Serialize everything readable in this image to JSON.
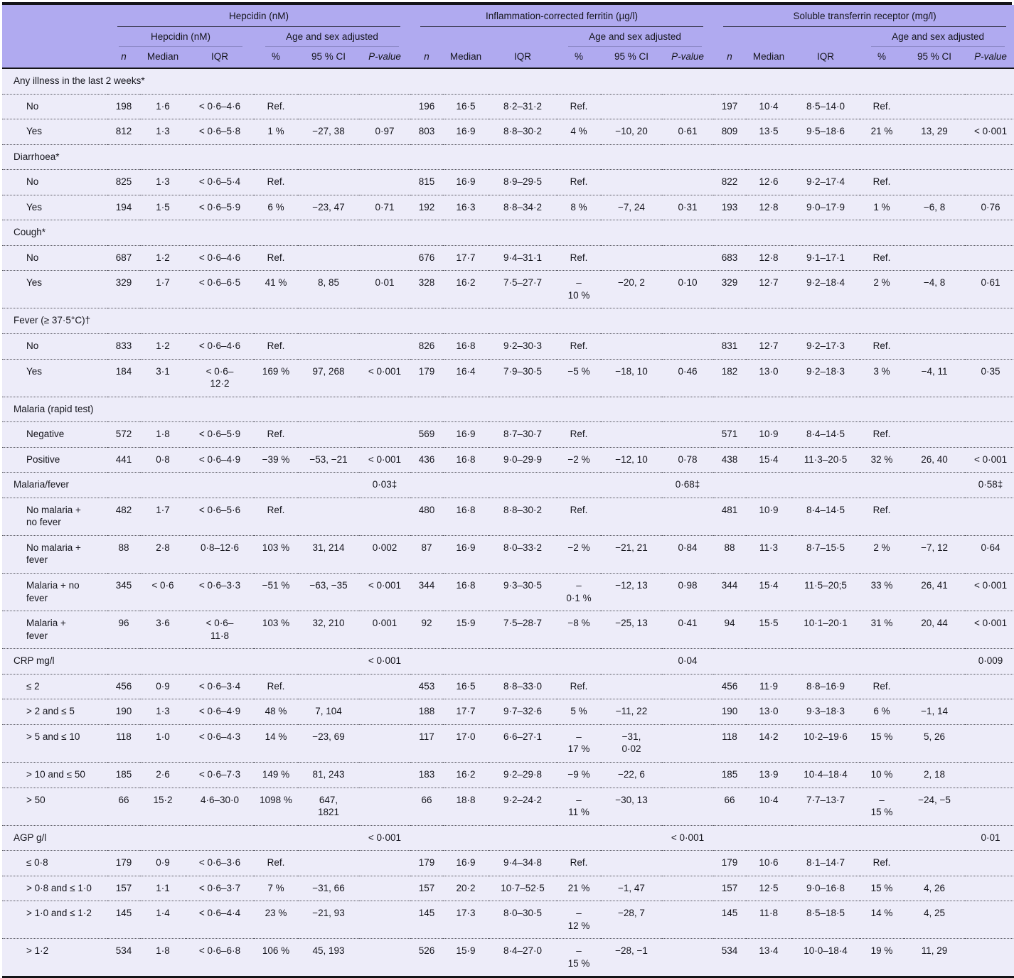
{
  "table": {
    "columns": {
      "groups": [
        {
          "label": "Hepcidin (nM)",
          "sub": "Hepcidin (nM)",
          "adjusted": "Age and sex adjusted"
        },
        {
          "label": "Inflammation-corrected ferritin (µg/l)",
          "sub": "",
          "adjusted": "Age and sex adjusted"
        },
        {
          "label": "Soluble transferrin receptor (mg/l)",
          "sub": "",
          "adjusted": "Age and sex adjusted"
        }
      ],
      "leaf": [
        {
          "label": "n",
          "italic": true
        },
        {
          "label": "Median",
          "italic": false
        },
        {
          "label": "IQR",
          "italic": false
        },
        {
          "label": "%",
          "italic": false
        },
        {
          "label": "95 % CI",
          "italic": false
        },
        {
          "label": "P-value",
          "italic": true
        }
      ]
    },
    "rows": [
      {
        "type": "section",
        "label": "Any illness in the last 2 weeks*",
        "cells": [
          "",
          "",
          "",
          "",
          "",
          "",
          "",
          "",
          "",
          "",
          "",
          "",
          "",
          "",
          "",
          "",
          "",
          ""
        ]
      },
      {
        "type": "data",
        "label": "No",
        "cells": [
          "198",
          "1·6",
          "< 0·6–4·6",
          "Ref.",
          "",
          "",
          "196",
          "16·5",
          "8·2–31·2",
          "Ref.",
          "",
          "",
          "197",
          "10·4",
          "8·5–14·0",
          "Ref.",
          "",
          ""
        ]
      },
      {
        "type": "data",
        "label": "Yes",
        "cells": [
          "812",
          "1·3",
          "< 0·6–5·8",
          "1 %",
          "−27, 38",
          "0·97",
          "803",
          "16·9",
          "8·8–30·2",
          "4 %",
          "−10, 20",
          "0·61",
          "809",
          "13·5",
          "9·5–18·6",
          "21 %",
          "13, 29",
          "< 0·001"
        ]
      },
      {
        "type": "section",
        "label": "Diarrhoea*",
        "cells": [
          "",
          "",
          "",
          "",
          "",
          "",
          "",
          "",
          "",
          "",
          "",
          "",
          "",
          "",
          "",
          "",
          "",
          ""
        ]
      },
      {
        "type": "data",
        "label": "No",
        "cells": [
          "825",
          "1·3",
          "< 0·6–5·4",
          "Ref.",
          "",
          "",
          "815",
          "16·9",
          "8·9–29·5",
          "Ref.",
          "",
          "",
          "822",
          "12·6",
          "9·2–17·4",
          "Ref.",
          "",
          ""
        ]
      },
      {
        "type": "data",
        "label": "Yes",
        "cells": [
          "194",
          "1·5",
          "< 0·6–5·9",
          "6 %",
          "−23, 47",
          "0·71",
          "192",
          "16·3",
          "8·8–34·2",
          "8 %",
          "−7, 24",
          "0·31",
          "193",
          "12·8",
          "9·0–17·9",
          "1 %",
          "−6, 8",
          "0·76"
        ]
      },
      {
        "type": "section",
        "label": "Cough*",
        "cells": [
          "",
          "",
          "",
          "",
          "",
          "",
          "",
          "",
          "",
          "",
          "",
          "",
          "",
          "",
          "",
          "",
          "",
          ""
        ]
      },
      {
        "type": "data",
        "label": "No",
        "cells": [
          "687",
          "1·2",
          "< 0·6–4·6",
          "Ref.",
          "",
          "",
          "676",
          "17·7",
          "9·4–31·1",
          "Ref.",
          "",
          "",
          "683",
          "12·8",
          "9·1–17·1",
          "Ref.",
          "",
          ""
        ]
      },
      {
        "type": "data",
        "label": "Yes",
        "cells": [
          "329",
          "1·7",
          "< 0·6–6·5",
          "41 %",
          "8, 85",
          "0·01",
          "328",
          "16·2",
          "7·5–27·7",
          "–\n10 %",
          "−20, 2",
          "0·10",
          "329",
          "12·7",
          "9·2–18·4",
          "2 %",
          "−4, 8",
          "0·61"
        ]
      },
      {
        "type": "section",
        "label": "Fever (≥ 37·5°C)†",
        "cells": [
          "",
          "",
          "",
          "",
          "",
          "",
          "",
          "",
          "",
          "",
          "",
          "",
          "",
          "",
          "",
          "",
          "",
          ""
        ]
      },
      {
        "type": "data",
        "label": "No",
        "cells": [
          "833",
          "1·2",
          "< 0·6–4·6",
          "Ref.",
          "",
          "",
          "826",
          "16·8",
          "9·2–30·3",
          "Ref.",
          "",
          "",
          "831",
          "12·7",
          "9·2–17·3",
          "Ref.",
          "",
          ""
        ]
      },
      {
        "type": "data",
        "label": "Yes",
        "cells": [
          "184",
          "3·1",
          "< 0·6–\n12·2",
          "169 %",
          "97, 268",
          "< 0·001",
          "179",
          "16·4",
          "7·9–30·5",
          "−5 %",
          "−18, 10",
          "0·46",
          "182",
          "13·0",
          "9·2–18·3",
          "3 %",
          "−4, 11",
          "0·35"
        ]
      },
      {
        "type": "section",
        "label": "Malaria (rapid test)",
        "cells": [
          "",
          "",
          "",
          "",
          "",
          "",
          "",
          "",
          "",
          "",
          "",
          "",
          "",
          "",
          "",
          "",
          "",
          ""
        ]
      },
      {
        "type": "data",
        "label": "Negative",
        "cells": [
          "572",
          "1·8",
          "< 0·6–5·9",
          "Ref.",
          "",
          "",
          "569",
          "16·9",
          "8·7–30·7",
          "Ref.",
          "",
          "",
          "571",
          "10·9",
          "8·4–14·5",
          "Ref.",
          "",
          ""
        ]
      },
      {
        "type": "data",
        "label": "Positive",
        "cells": [
          "441",
          "0·8",
          "< 0·6–4·9",
          "−39 %",
          "−53, −21",
          "< 0·001",
          "436",
          "16·8",
          "9·0–29·9",
          "−2 %",
          "−12, 10",
          "0·78",
          "438",
          "15·4",
          "11·3–20·5",
          "32 %",
          "26, 40",
          "< 0·001"
        ]
      },
      {
        "type": "section",
        "label": "Malaria/fever",
        "cells": [
          "",
          "",
          "",
          "",
          "",
          "0·03‡",
          "",
          "",
          "",
          "",
          "",
          "0·68‡",
          "",
          "",
          "",
          "",
          "",
          "0·58‡"
        ]
      },
      {
        "type": "data",
        "label": "No malaria +\nno fever",
        "cells": [
          "482",
          "1·7",
          "< 0·6–5·6",
          "Ref.",
          "",
          "",
          "480",
          "16·8",
          "8·8–30·2",
          "Ref.",
          "",
          "",
          "481",
          "10·9",
          "8·4–14·5",
          "Ref.",
          "",
          ""
        ]
      },
      {
        "type": "data",
        "label": "No malaria +\nfever",
        "cells": [
          "88",
          "2·8",
          "0·8–12·6",
          "103 %",
          "31, 214",
          "0·002",
          "87",
          "16·9",
          "8·0–33·2",
          "−2 %",
          "−21, 21",
          "0·84",
          "88",
          "11·3",
          "8·7–15·5",
          "2 %",
          "−7, 12",
          "0·64"
        ]
      },
      {
        "type": "data",
        "label": "Malaria + no\nfever",
        "cells": [
          "345",
          "< 0·6",
          "< 0·6–3·3",
          "−51 %",
          "−63, −35",
          "< 0·001",
          "344",
          "16·8",
          "9·3–30·5",
          "–\n0·1 %",
          "−12, 13",
          "0·98",
          "344",
          "15·4",
          "11·5–20;5",
          "33 %",
          "26, 41",
          "< 0·001"
        ]
      },
      {
        "type": "data",
        "label": "Malaria +\nfever",
        "cells": [
          "96",
          "3·6",
          "< 0·6–\n11·8",
          "103 %",
          "32, 210",
          "0·001",
          "92",
          "15·9",
          "7·5–28·7",
          "−8 %",
          "−25, 13",
          "0·41",
          "94",
          "15·5",
          "10·1–20·1",
          "31 %",
          "20, 44",
          "< 0·001"
        ]
      },
      {
        "type": "section",
        "label": "CRP mg/l",
        "cells": [
          "",
          "",
          "",
          "",
          "",
          "< 0·001",
          "",
          "",
          "",
          "",
          "",
          "0·04",
          "",
          "",
          "",
          "",
          "",
          "0·009"
        ]
      },
      {
        "type": "data",
        "label": "≤ 2",
        "cells": [
          "456",
          "0·9",
          "< 0·6–3·4",
          "Ref.",
          "",
          "",
          "453",
          "16·5",
          "8·8–33·0",
          "Ref.",
          "",
          "",
          "456",
          "11·9",
          "8·8–16·9",
          "Ref.",
          "",
          ""
        ]
      },
      {
        "type": "data",
        "label": "> 2 and ≤ 5",
        "cells": [
          "190",
          "1·3",
          "< 0·6–4·9",
          "48 %",
          "7, 104",
          "",
          "188",
          "17·7",
          "9·7–32·6",
          "5 %",
          "−11, 22",
          "",
          "190",
          "13·0",
          "9·3–18·3",
          "6 %",
          "−1, 14",
          ""
        ]
      },
      {
        "type": "data",
        "label": "> 5 and ≤ 10",
        "cells": [
          "118",
          "1·0",
          "< 0·6–4·3",
          "14 %",
          "−23, 69",
          "",
          "117",
          "17·0",
          "6·6–27·1",
          "–\n17 %",
          "−31,\n0·02",
          "",
          "118",
          "14·2",
          "10·2–19·6",
          "15 %",
          "5, 26",
          ""
        ]
      },
      {
        "type": "data",
        "label": "> 10 and ≤ 50",
        "cells": [
          "185",
          "2·6",
          "< 0·6–7·3",
          "149 %",
          "81, 243",
          "",
          "183",
          "16·2",
          "9·2–29·8",
          "−9 %",
          "−22, 6",
          "",
          "185",
          "13·9",
          "10·4–18·4",
          "10 %",
          "2, 18",
          ""
        ]
      },
      {
        "type": "data",
        "label": "> 50",
        "cells": [
          "66",
          "15·2",
          "4·6–30·0",
          "1098 %",
          "647,\n1821",
          "",
          "66",
          "18·8",
          "9·2–24·2",
          "–\n11 %",
          "−30, 13",
          "",
          "66",
          "10·4",
          "7·7–13·7",
          "–\n15 %",
          "−24, −5",
          ""
        ]
      },
      {
        "type": "section",
        "label": "AGP g/l",
        "cells": [
          "",
          "",
          "",
          "",
          "",
          "< 0·001",
          "",
          "",
          "",
          "",
          "",
          "< 0·001",
          "",
          "",
          "",
          "",
          "",
          "0·01"
        ]
      },
      {
        "type": "data",
        "label": "≤ 0·8",
        "cells": [
          "179",
          "0·9",
          "< 0·6–3·6",
          "Ref.",
          "",
          "",
          "179",
          "16·9",
          "9·4–34·8",
          "Ref.",
          "",
          "",
          "179",
          "10·6",
          "8·1–14·7",
          "Ref.",
          "",
          ""
        ]
      },
      {
        "type": "data",
        "label": "> 0·8 and ≤ 1·0",
        "cells": [
          "157",
          "1·1",
          "< 0·6–3·7",
          "7 %",
          "−31, 66",
          "",
          "157",
          "20·2",
          "10·7–52·5",
          "21 %",
          "−1, 47",
          "",
          "157",
          "12·5",
          "9·0–16·8",
          "15 %",
          "4, 26",
          ""
        ]
      },
      {
        "type": "data",
        "label": "> 1·0 and ≤ 1·2",
        "cells": [
          "145",
          "1·4",
          "< 0·6–4·4",
          "23 %",
          "−21, 93",
          "",
          "145",
          "17·3",
          "8·0–30·5",
          "–\n12 %",
          "−28, 7",
          "",
          "145",
          "11·8",
          "8·5–18·5",
          "14 %",
          "4, 25",
          ""
        ]
      },
      {
        "type": "data",
        "label": "> 1·2",
        "cells": [
          "534",
          "1·8",
          "< 0·6–6·8",
          "106 %",
          "45, 193",
          "",
          "526",
          "15·9",
          "8·4–27·0",
          "–\n15 %",
          "−28, −1",
          "",
          "534",
          "13·4",
          "10·0–18·4",
          "19 %",
          "11, 29",
          ""
        ]
      }
    ]
  }
}
